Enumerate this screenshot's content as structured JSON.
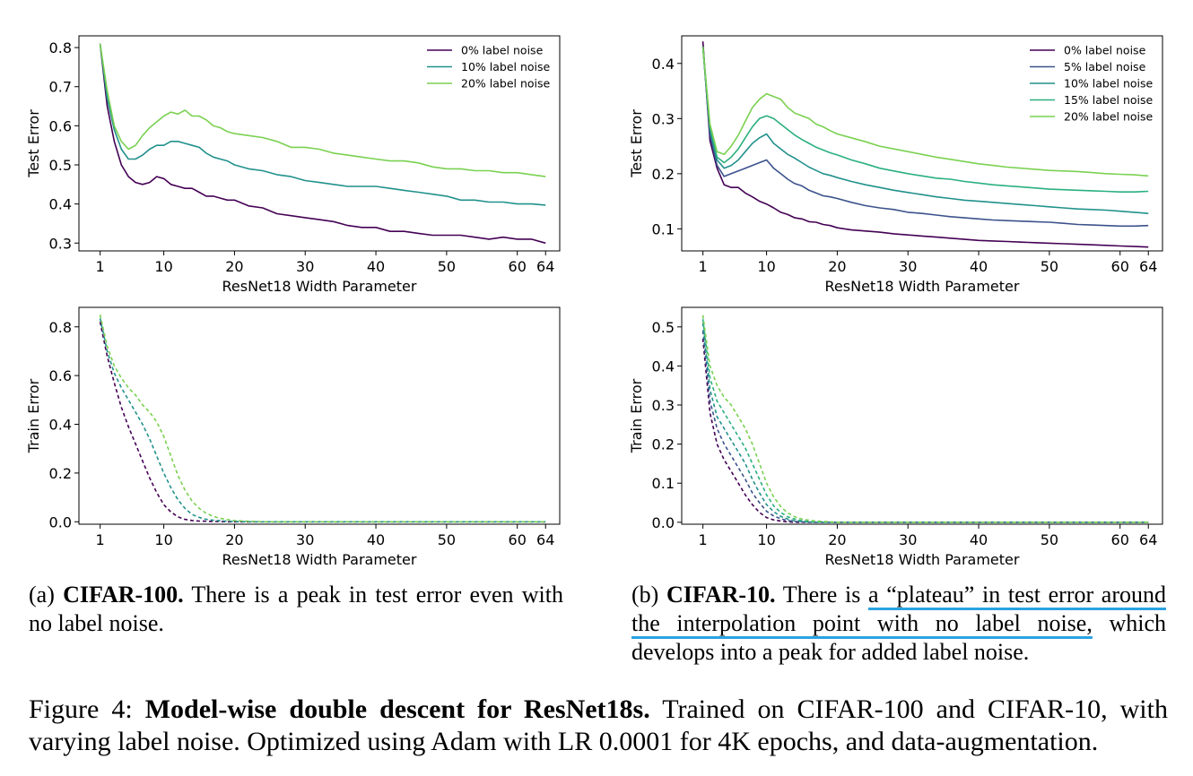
{
  "chart_data": [
    {
      "type": "line",
      "panel": "a-top",
      "xlabel": "ResNet18 Width Parameter",
      "ylabel": "Test Error",
      "xticks": [
        "1",
        "10",
        "20",
        "30",
        "40",
        "50",
        "60",
        "64"
      ],
      "yticks": [
        "0.3",
        "0.4",
        "0.5",
        "0.6",
        "0.7",
        "0.8"
      ],
      "xlim": [
        -2,
        66
      ],
      "ylim": [
        0.28,
        0.83
      ],
      "legend": "top-right",
      "line_style": "solid",
      "x": [
        1,
        2,
        3,
        4,
        5,
        6,
        7,
        8,
        9,
        10,
        11,
        12,
        13,
        14,
        15,
        16,
        17,
        18,
        19,
        20,
        22,
        24,
        26,
        28,
        30,
        32,
        34,
        36,
        38,
        40,
        42,
        44,
        46,
        48,
        50,
        52,
        54,
        56,
        58,
        60,
        62,
        64
      ],
      "series": [
        {
          "name": "0% label noise",
          "color": "#440154",
          "values": [
            0.81,
            0.65,
            0.56,
            0.5,
            0.47,
            0.455,
            0.45,
            0.455,
            0.47,
            0.465,
            0.45,
            0.445,
            0.44,
            0.44,
            0.43,
            0.42,
            0.42,
            0.415,
            0.41,
            0.41,
            0.395,
            0.39,
            0.375,
            0.37,
            0.365,
            0.36,
            0.355,
            0.345,
            0.34,
            0.34,
            0.33,
            0.33,
            0.325,
            0.32,
            0.32,
            0.32,
            0.315,
            0.31,
            0.315,
            0.31,
            0.31,
            0.3
          ]
        },
        {
          "name": "10% label noise",
          "color": "#21918c",
          "values": [
            0.81,
            0.67,
            0.59,
            0.54,
            0.515,
            0.515,
            0.525,
            0.54,
            0.55,
            0.55,
            0.56,
            0.56,
            0.555,
            0.55,
            0.545,
            0.53,
            0.52,
            0.515,
            0.51,
            0.5,
            0.49,
            0.485,
            0.475,
            0.47,
            0.46,
            0.455,
            0.45,
            0.445,
            0.445,
            0.445,
            0.44,
            0.435,
            0.43,
            0.425,
            0.42,
            0.41,
            0.41,
            0.405,
            0.405,
            0.4,
            0.4,
            0.397
          ]
        },
        {
          "name": "20% label noise",
          "color": "#7ad151",
          "values": [
            0.81,
            0.69,
            0.6,
            0.56,
            0.54,
            0.55,
            0.575,
            0.595,
            0.61,
            0.625,
            0.635,
            0.63,
            0.64,
            0.625,
            0.625,
            0.615,
            0.6,
            0.595,
            0.585,
            0.58,
            0.575,
            0.57,
            0.56,
            0.545,
            0.545,
            0.54,
            0.53,
            0.525,
            0.52,
            0.515,
            0.51,
            0.51,
            0.505,
            0.495,
            0.49,
            0.49,
            0.485,
            0.485,
            0.48,
            0.48,
            0.475,
            0.47
          ]
        }
      ]
    },
    {
      "type": "line",
      "panel": "b-top",
      "xlabel": "ResNet18 Width Parameter",
      "ylabel": "Test Error",
      "xticks": [
        "1",
        "10",
        "20",
        "30",
        "40",
        "50",
        "60",
        "64"
      ],
      "yticks": [
        "0.1",
        "0.2",
        "0.3",
        "0.4"
      ],
      "xlim": [
        -2,
        66
      ],
      "ylim": [
        0.06,
        0.45
      ],
      "legend": "top-right",
      "line_style": "solid",
      "x": [
        1,
        2,
        3,
        4,
        5,
        6,
        7,
        8,
        9,
        10,
        11,
        12,
        13,
        14,
        15,
        16,
        17,
        18,
        19,
        20,
        22,
        24,
        26,
        28,
        30,
        32,
        34,
        36,
        38,
        40,
        42,
        44,
        46,
        48,
        50,
        52,
        54,
        56,
        58,
        60,
        62,
        64
      ],
      "series": [
        {
          "name": "0% label noise",
          "color": "#440154",
          "values": [
            0.44,
            0.26,
            0.21,
            0.18,
            0.175,
            0.175,
            0.165,
            0.158,
            0.15,
            0.145,
            0.138,
            0.13,
            0.126,
            0.12,
            0.118,
            0.113,
            0.112,
            0.108,
            0.106,
            0.102,
            0.098,
            0.096,
            0.094,
            0.091,
            0.089,
            0.087,
            0.085,
            0.083,
            0.081,
            0.079,
            0.078,
            0.077,
            0.076,
            0.075,
            0.074,
            0.073,
            0.072,
            0.071,
            0.07,
            0.069,
            0.068,
            0.067
          ]
        },
        {
          "name": "5% label noise",
          "color": "#3b528b",
          "values": [
            0.43,
            0.27,
            0.215,
            0.195,
            0.2,
            0.205,
            0.21,
            0.215,
            0.22,
            0.225,
            0.21,
            0.2,
            0.19,
            0.182,
            0.178,
            0.17,
            0.165,
            0.16,
            0.158,
            0.155,
            0.148,
            0.142,
            0.138,
            0.135,
            0.13,
            0.128,
            0.125,
            0.122,
            0.12,
            0.118,
            0.116,
            0.115,
            0.114,
            0.113,
            0.112,
            0.11,
            0.108,
            0.107,
            0.106,
            0.105,
            0.105,
            0.106
          ]
        },
        {
          "name": "10% label noise",
          "color": "#21918c",
          "values": [
            0.43,
            0.28,
            0.225,
            0.21,
            0.215,
            0.225,
            0.24,
            0.255,
            0.265,
            0.272,
            0.255,
            0.245,
            0.235,
            0.228,
            0.22,
            0.212,
            0.206,
            0.2,
            0.197,
            0.193,
            0.186,
            0.18,
            0.175,
            0.17,
            0.166,
            0.162,
            0.158,
            0.155,
            0.152,
            0.15,
            0.148,
            0.146,
            0.144,
            0.142,
            0.14,
            0.138,
            0.136,
            0.135,
            0.134,
            0.132,
            0.13,
            0.128
          ]
        },
        {
          "name": "15% label noise",
          "color": "#2ab07f",
          "values": [
            0.43,
            0.285,
            0.23,
            0.22,
            0.23,
            0.245,
            0.265,
            0.285,
            0.3,
            0.305,
            0.3,
            0.29,
            0.28,
            0.27,
            0.262,
            0.255,
            0.248,
            0.243,
            0.238,
            0.234,
            0.225,
            0.218,
            0.21,
            0.205,
            0.2,
            0.196,
            0.192,
            0.19,
            0.186,
            0.183,
            0.18,
            0.178,
            0.176,
            0.174,
            0.172,
            0.171,
            0.17,
            0.169,
            0.168,
            0.167,
            0.167,
            0.168
          ]
        },
        {
          "name": "20% label noise",
          "color": "#7ad151",
          "values": [
            0.43,
            0.29,
            0.24,
            0.235,
            0.25,
            0.27,
            0.295,
            0.32,
            0.335,
            0.345,
            0.34,
            0.335,
            0.32,
            0.31,
            0.305,
            0.3,
            0.29,
            0.285,
            0.278,
            0.272,
            0.265,
            0.258,
            0.25,
            0.245,
            0.24,
            0.235,
            0.23,
            0.226,
            0.222,
            0.218,
            0.215,
            0.212,
            0.21,
            0.208,
            0.206,
            0.205,
            0.204,
            0.202,
            0.2,
            0.199,
            0.198,
            0.196
          ]
        }
      ]
    },
    {
      "type": "line",
      "panel": "a-bottom",
      "xlabel": "ResNet18 Width Parameter",
      "ylabel": "Train Error",
      "xticks": [
        "1",
        "10",
        "20",
        "30",
        "40",
        "50",
        "60",
        "64"
      ],
      "yticks": [
        "0.0",
        "0.2",
        "0.4",
        "0.6",
        "0.8"
      ],
      "xlim": [
        -2,
        66
      ],
      "ylim": [
        -0.01,
        0.88
      ],
      "line_style": "dashed",
      "x": [
        1,
        2,
        3,
        4,
        5,
        6,
        7,
        8,
        9,
        10,
        11,
        12,
        13,
        14,
        15,
        16,
        17,
        18,
        19,
        20,
        22,
        24,
        26,
        28,
        30,
        35,
        40,
        45,
        50,
        55,
        60,
        64
      ],
      "series": [
        {
          "name": "0% label noise",
          "color": "#440154",
          "values": [
            0.82,
            0.68,
            0.57,
            0.47,
            0.39,
            0.32,
            0.25,
            0.18,
            0.12,
            0.07,
            0.04,
            0.02,
            0.01,
            0.005,
            0.003,
            0.002,
            0.001,
            0.001,
            0.0,
            0.0,
            0.0,
            0.0,
            0.0,
            0.0,
            0.0,
            0.0,
            0.0,
            0.0,
            0.0,
            0.0,
            0.0,
            0.0
          ]
        },
        {
          "name": "10% label noise",
          "color": "#21918c",
          "values": [
            0.835,
            0.7,
            0.61,
            0.55,
            0.5,
            0.45,
            0.4,
            0.34,
            0.27,
            0.2,
            0.14,
            0.09,
            0.055,
            0.03,
            0.018,
            0.01,
            0.006,
            0.004,
            0.002,
            0.001,
            0.0,
            0.0,
            0.0,
            0.0,
            0.0,
            0.0,
            0.0,
            0.0,
            0.0,
            0.0,
            0.0,
            0.0
          ]
        },
        {
          "name": "20% label noise",
          "color": "#7ad151",
          "values": [
            0.85,
            0.72,
            0.64,
            0.59,
            0.55,
            0.52,
            0.48,
            0.45,
            0.41,
            0.35,
            0.27,
            0.19,
            0.13,
            0.085,
            0.055,
            0.035,
            0.022,
            0.014,
            0.009,
            0.005,
            0.002,
            0.0,
            0.0,
            0.0,
            0.0,
            0.0,
            0.0,
            0.0,
            0.0,
            0.0,
            0.0,
            0.0
          ]
        }
      ]
    },
    {
      "type": "line",
      "panel": "b-bottom",
      "xlabel": "ResNet18 Width Parameter",
      "ylabel": "Train Error",
      "xticks": [
        "1",
        "10",
        "20",
        "30",
        "40",
        "50",
        "60",
        "64"
      ],
      "yticks": [
        "0.0",
        "0.1",
        "0.2",
        "0.3",
        "0.4",
        "0.5"
      ],
      "xlim": [
        -2,
        66
      ],
      "ylim": [
        -0.005,
        0.55
      ],
      "line_style": "dashed",
      "x": [
        1,
        2,
        3,
        4,
        5,
        6,
        7,
        8,
        9,
        10,
        11,
        12,
        13,
        14,
        15,
        16,
        17,
        18,
        19,
        20,
        22,
        24,
        26,
        28,
        30,
        35,
        40,
        45,
        50,
        55,
        60,
        64
      ],
      "series": [
        {
          "name": "0% label noise",
          "color": "#440154",
          "values": [
            0.47,
            0.28,
            0.2,
            0.16,
            0.13,
            0.1,
            0.07,
            0.045,
            0.025,
            0.012,
            0.006,
            0.003,
            0.001,
            0.0,
            0.0,
            0.0,
            0.0,
            0.0,
            0.0,
            0.0,
            0.0,
            0.0,
            0.0,
            0.0,
            0.0,
            0.0,
            0.0,
            0.0,
            0.0,
            0.0,
            0.0,
            0.0
          ]
        },
        {
          "name": "5% label noise",
          "color": "#3b528b",
          "values": [
            0.49,
            0.31,
            0.24,
            0.2,
            0.17,
            0.14,
            0.11,
            0.075,
            0.05,
            0.028,
            0.016,
            0.009,
            0.004,
            0.002,
            0.001,
            0.0,
            0.0,
            0.0,
            0.0,
            0.0,
            0.0,
            0.0,
            0.0,
            0.0,
            0.0,
            0.0,
            0.0,
            0.0,
            0.0,
            0.0,
            0.0,
            0.0
          ]
        },
        {
          "name": "10% label noise",
          "color": "#21918c",
          "values": [
            0.51,
            0.34,
            0.27,
            0.24,
            0.21,
            0.18,
            0.15,
            0.11,
            0.075,
            0.045,
            0.027,
            0.015,
            0.008,
            0.004,
            0.002,
            0.001,
            0.0,
            0.0,
            0.0,
            0.0,
            0.0,
            0.0,
            0.0,
            0.0,
            0.0,
            0.0,
            0.0,
            0.0,
            0.0,
            0.0,
            0.0,
            0.0
          ]
        },
        {
          "name": "15% label noise",
          "color": "#2ab07f",
          "values": [
            0.52,
            0.37,
            0.31,
            0.28,
            0.25,
            0.22,
            0.19,
            0.15,
            0.11,
            0.07,
            0.042,
            0.025,
            0.014,
            0.008,
            0.004,
            0.002,
            0.001,
            0.0,
            0.0,
            0.0,
            0.0,
            0.0,
            0.0,
            0.0,
            0.0,
            0.0,
            0.0,
            0.0,
            0.0,
            0.0,
            0.0,
            0.0
          ]
        },
        {
          "name": "20% label noise",
          "color": "#7ad151",
          "values": [
            0.53,
            0.4,
            0.35,
            0.32,
            0.3,
            0.27,
            0.24,
            0.2,
            0.15,
            0.1,
            0.065,
            0.04,
            0.024,
            0.014,
            0.008,
            0.005,
            0.003,
            0.002,
            0.001,
            0.0,
            0.0,
            0.0,
            0.0,
            0.0,
            0.0,
            0.0,
            0.0,
            0.0,
            0.0,
            0.0,
            0.0,
            0.0
          ]
        }
      ]
    }
  ],
  "captions": {
    "a_prefix": "(a) ",
    "a_bold": "CIFAR-100.",
    "a_text": " There is a peak in test error even with no label noise.",
    "b_prefix": "(b) ",
    "b_bold": "CIFAR-10.",
    "b_text1": " There is ",
    "b_highlight": "a “plateau” in test error around the interpolation point with no label noise,",
    "b_text2": " which develops into a peak for added label noise.",
    "fig_prefix": "Figure 4: ",
    "fig_bold": "Model-wise double descent for ResNet18s.",
    "fig_text": " Trained on CIFAR-100 and CIFAR-10, with varying label noise. Optimized using Adam with LR 0.0001 for 4K epochs, and data-augmentation."
  }
}
